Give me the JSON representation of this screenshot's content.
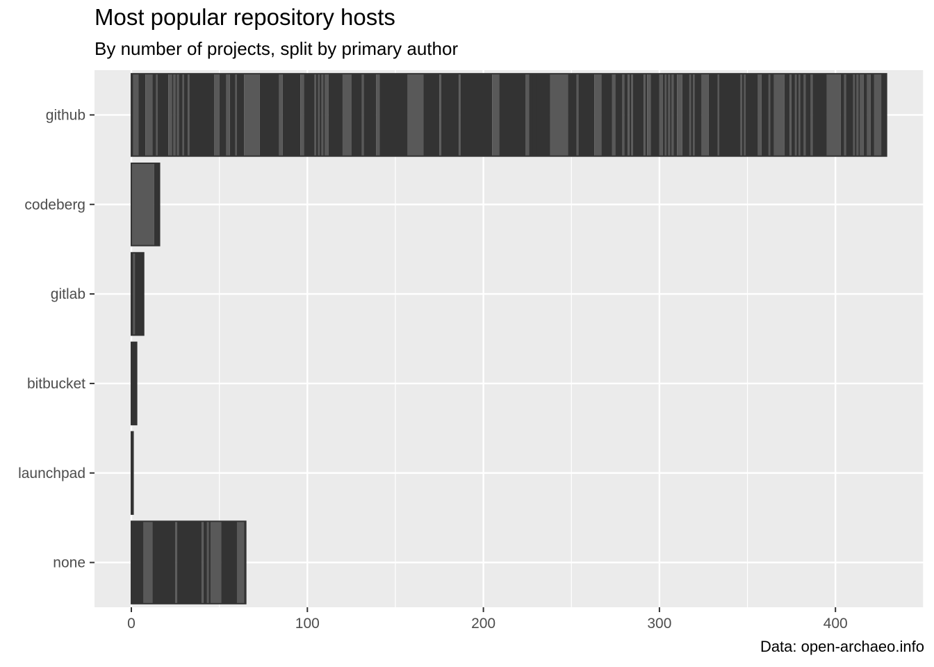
{
  "title": "Most popular repository hosts",
  "subtitle": "By number of projects, split by primary author",
  "caption": "Data: open-archaeo.info",
  "chart_data": {
    "type": "bar",
    "orientation": "horizontal",
    "categories": [
      "github",
      "codeberg",
      "gitlab",
      "bitbucket",
      "launchpad",
      "none"
    ],
    "values": [
      429,
      16,
      7,
      3,
      1,
      65
    ],
    "xlim": [
      -21,
      446
    ],
    "xticks": [
      0,
      100,
      200,
      300,
      400
    ],
    "xtick_labels": [
      "0",
      "100",
      "200",
      "300",
      "400"
    ],
    "grid": true,
    "stacked_segments_note_colors": {
      "dark": "#333333",
      "light": "#595959"
    },
    "segments": {
      "github": [
        [
          0,
          1,
          "d"
        ],
        [
          1,
          4,
          "l"
        ],
        [
          4,
          8,
          "d"
        ],
        [
          8,
          12,
          "l"
        ],
        [
          12,
          14,
          "d"
        ],
        [
          14,
          15,
          "l"
        ],
        [
          15,
          21,
          "d"
        ],
        [
          21,
          23,
          "l"
        ],
        [
          23,
          24,
          "d"
        ],
        [
          24,
          25,
          "l"
        ],
        [
          25,
          26,
          "d"
        ],
        [
          26,
          27,
          "l"
        ],
        [
          27,
          29,
          "d"
        ],
        [
          29,
          30,
          "l"
        ],
        [
          30,
          32,
          "d"
        ],
        [
          32,
          33,
          "l"
        ],
        [
          33,
          47,
          "d"
        ],
        [
          47,
          50,
          "l"
        ],
        [
          50,
          54,
          "d"
        ],
        [
          54,
          56,
          "l"
        ],
        [
          56,
          59,
          "d"
        ],
        [
          59,
          60,
          "l"
        ],
        [
          60,
          64,
          "d"
        ],
        [
          64,
          73,
          "l"
        ],
        [
          73,
          84,
          "d"
        ],
        [
          84,
          86,
          "l"
        ],
        [
          86,
          96,
          "d"
        ],
        [
          96,
          98,
          "l"
        ],
        [
          98,
          104,
          "d"
        ],
        [
          104,
          105,
          "l"
        ],
        [
          105,
          106,
          "d"
        ],
        [
          106,
          107,
          "l"
        ],
        [
          107,
          108,
          "d"
        ],
        [
          108,
          109,
          "l"
        ],
        [
          109,
          110,
          "d"
        ],
        [
          110,
          112,
          "l"
        ],
        [
          112,
          120,
          "d"
        ],
        [
          120,
          125,
          "l"
        ],
        [
          125,
          131,
          "d"
        ],
        [
          131,
          132,
          "l"
        ],
        [
          132,
          139,
          "d"
        ],
        [
          139,
          141,
          "l"
        ],
        [
          141,
          157,
          "d"
        ],
        [
          157,
          166,
          "l"
        ],
        [
          166,
          175,
          "d"
        ],
        [
          175,
          176,
          "l"
        ],
        [
          176,
          186,
          "d"
        ],
        [
          186,
          187,
          "l"
        ],
        [
          187,
          205,
          "d"
        ],
        [
          205,
          209,
          "l"
        ],
        [
          209,
          224,
          "d"
        ],
        [
          224,
          226,
          "l"
        ],
        [
          226,
          229,
          "d"
        ],
        [
          229,
          230,
          "l"
        ],
        [
          230,
          229,
          "d"
        ],
        [
          229,
          231,
          "d"
        ],
        [
          231,
          228,
          "d"
        ],
        [
          228,
          228,
          "d"
        ],
        [
          228,
          230,
          "d"
        ],
        [
          230,
          238,
          "d"
        ],
        [
          238,
          248,
          "l"
        ],
        [
          248,
          253,
          "d"
        ],
        [
          253,
          254,
          "l"
        ],
        [
          254,
          263,
          "d"
        ],
        [
          263,
          267,
          "l"
        ],
        [
          267,
          273,
          "d"
        ],
        [
          273,
          275,
          "l"
        ],
        [
          275,
          279,
          "d"
        ],
        [
          279,
          280,
          "l"
        ],
        [
          280,
          282,
          "d"
        ],
        [
          282,
          283,
          "l"
        ],
        [
          283,
          284,
          "d"
        ],
        [
          284,
          285,
          "l"
        ],
        [
          285,
          291,
          "d"
        ],
        [
          291,
          292,
          "l"
        ],
        [
          292,
          293,
          "d"
        ],
        [
          293,
          295,
          "l"
        ],
        [
          295,
          300,
          "d"
        ],
        [
          300,
          302,
          "l"
        ],
        [
          302,
          303,
          "d"
        ],
        [
          303,
          304,
          "l"
        ],
        [
          304,
          305,
          "d"
        ],
        [
          305,
          306,
          "l"
        ],
        [
          306,
          307,
          "d"
        ],
        [
          307,
          308,
          "l"
        ],
        [
          308,
          310,
          "d"
        ],
        [
          310,
          313,
          "l"
        ],
        [
          313,
          317,
          "d"
        ],
        [
          317,
          318,
          "l"
        ],
        [
          318,
          319,
          "d"
        ],
        [
          319,
          320,
          "l"
        ],
        [
          320,
          324,
          "d"
        ],
        [
          324,
          328,
          "l"
        ],
        [
          328,
          333,
          "d"
        ],
        [
          333,
          334,
          "l"
        ],
        [
          334,
          346,
          "d"
        ],
        [
          346,
          347,
          "l"
        ],
        [
          347,
          348,
          "d"
        ],
        [
          348,
          349,
          "l"
        ],
        [
          349,
          356,
          "d"
        ],
        [
          356,
          358,
          "l"
        ],
        [
          358,
          362,
          "d"
        ],
        [
          362,
          363,
          "l"
        ],
        [
          363,
          365,
          "d"
        ],
        [
          365,
          371,
          "l"
        ],
        [
          371,
          374,
          "d"
        ],
        [
          374,
          375,
          "l"
        ],
        [
          375,
          377,
          "d"
        ],
        [
          377,
          378,
          "l"
        ],
        [
          378,
          379,
          "d"
        ],
        [
          379,
          380,
          "l"
        ],
        [
          380,
          382,
          "d"
        ],
        [
          382,
          383,
          "l"
        ],
        [
          383,
          386,
          "d"
        ],
        [
          386,
          387,
          "l"
        ],
        [
          387,
          395,
          "d"
        ],
        [
          395,
          403,
          "l"
        ],
        [
          403,
          405,
          "d"
        ],
        [
          405,
          406,
          "l"
        ],
        [
          406,
          410,
          "d"
        ],
        [
          410,
          411,
          "l"
        ],
        [
          411,
          412,
          "d"
        ],
        [
          412,
          413,
          "l"
        ],
        [
          413,
          414,
          "d"
        ],
        [
          414,
          416,
          "l"
        ],
        [
          416,
          418,
          "d"
        ],
        [
          418,
          420,
          "l"
        ],
        [
          420,
          422,
          "d"
        ],
        [
          422,
          426,
          "l"
        ],
        [
          426,
          429,
          "d"
        ]
      ],
      "codeberg": [
        [
          0,
          13,
          "l"
        ],
        [
          13,
          16,
          "d"
        ]
      ],
      "gitlab": [
        [
          0,
          1,
          "d"
        ],
        [
          1,
          2,
          "l"
        ],
        [
          2,
          7,
          "d"
        ]
      ],
      "bitbucket": [
        [
          0,
          3,
          "d"
        ]
      ],
      "launchpad": [
        [
          0,
          1,
          "d"
        ]
      ],
      "none": [
        [
          0,
          7,
          "d"
        ],
        [
          7,
          12,
          "l"
        ],
        [
          12,
          25,
          "d"
        ],
        [
          25,
          26,
          "l"
        ],
        [
          26,
          40,
          "d"
        ],
        [
          40,
          41,
          "l"
        ],
        [
          41,
          43,
          "d"
        ],
        [
          43,
          44,
          "l"
        ],
        [
          44,
          45,
          "d"
        ],
        [
          45,
          51,
          "l"
        ],
        [
          51,
          60,
          "d"
        ],
        [
          60,
          64,
          "l"
        ],
        [
          64,
          65,
          "d"
        ]
      ]
    }
  }
}
